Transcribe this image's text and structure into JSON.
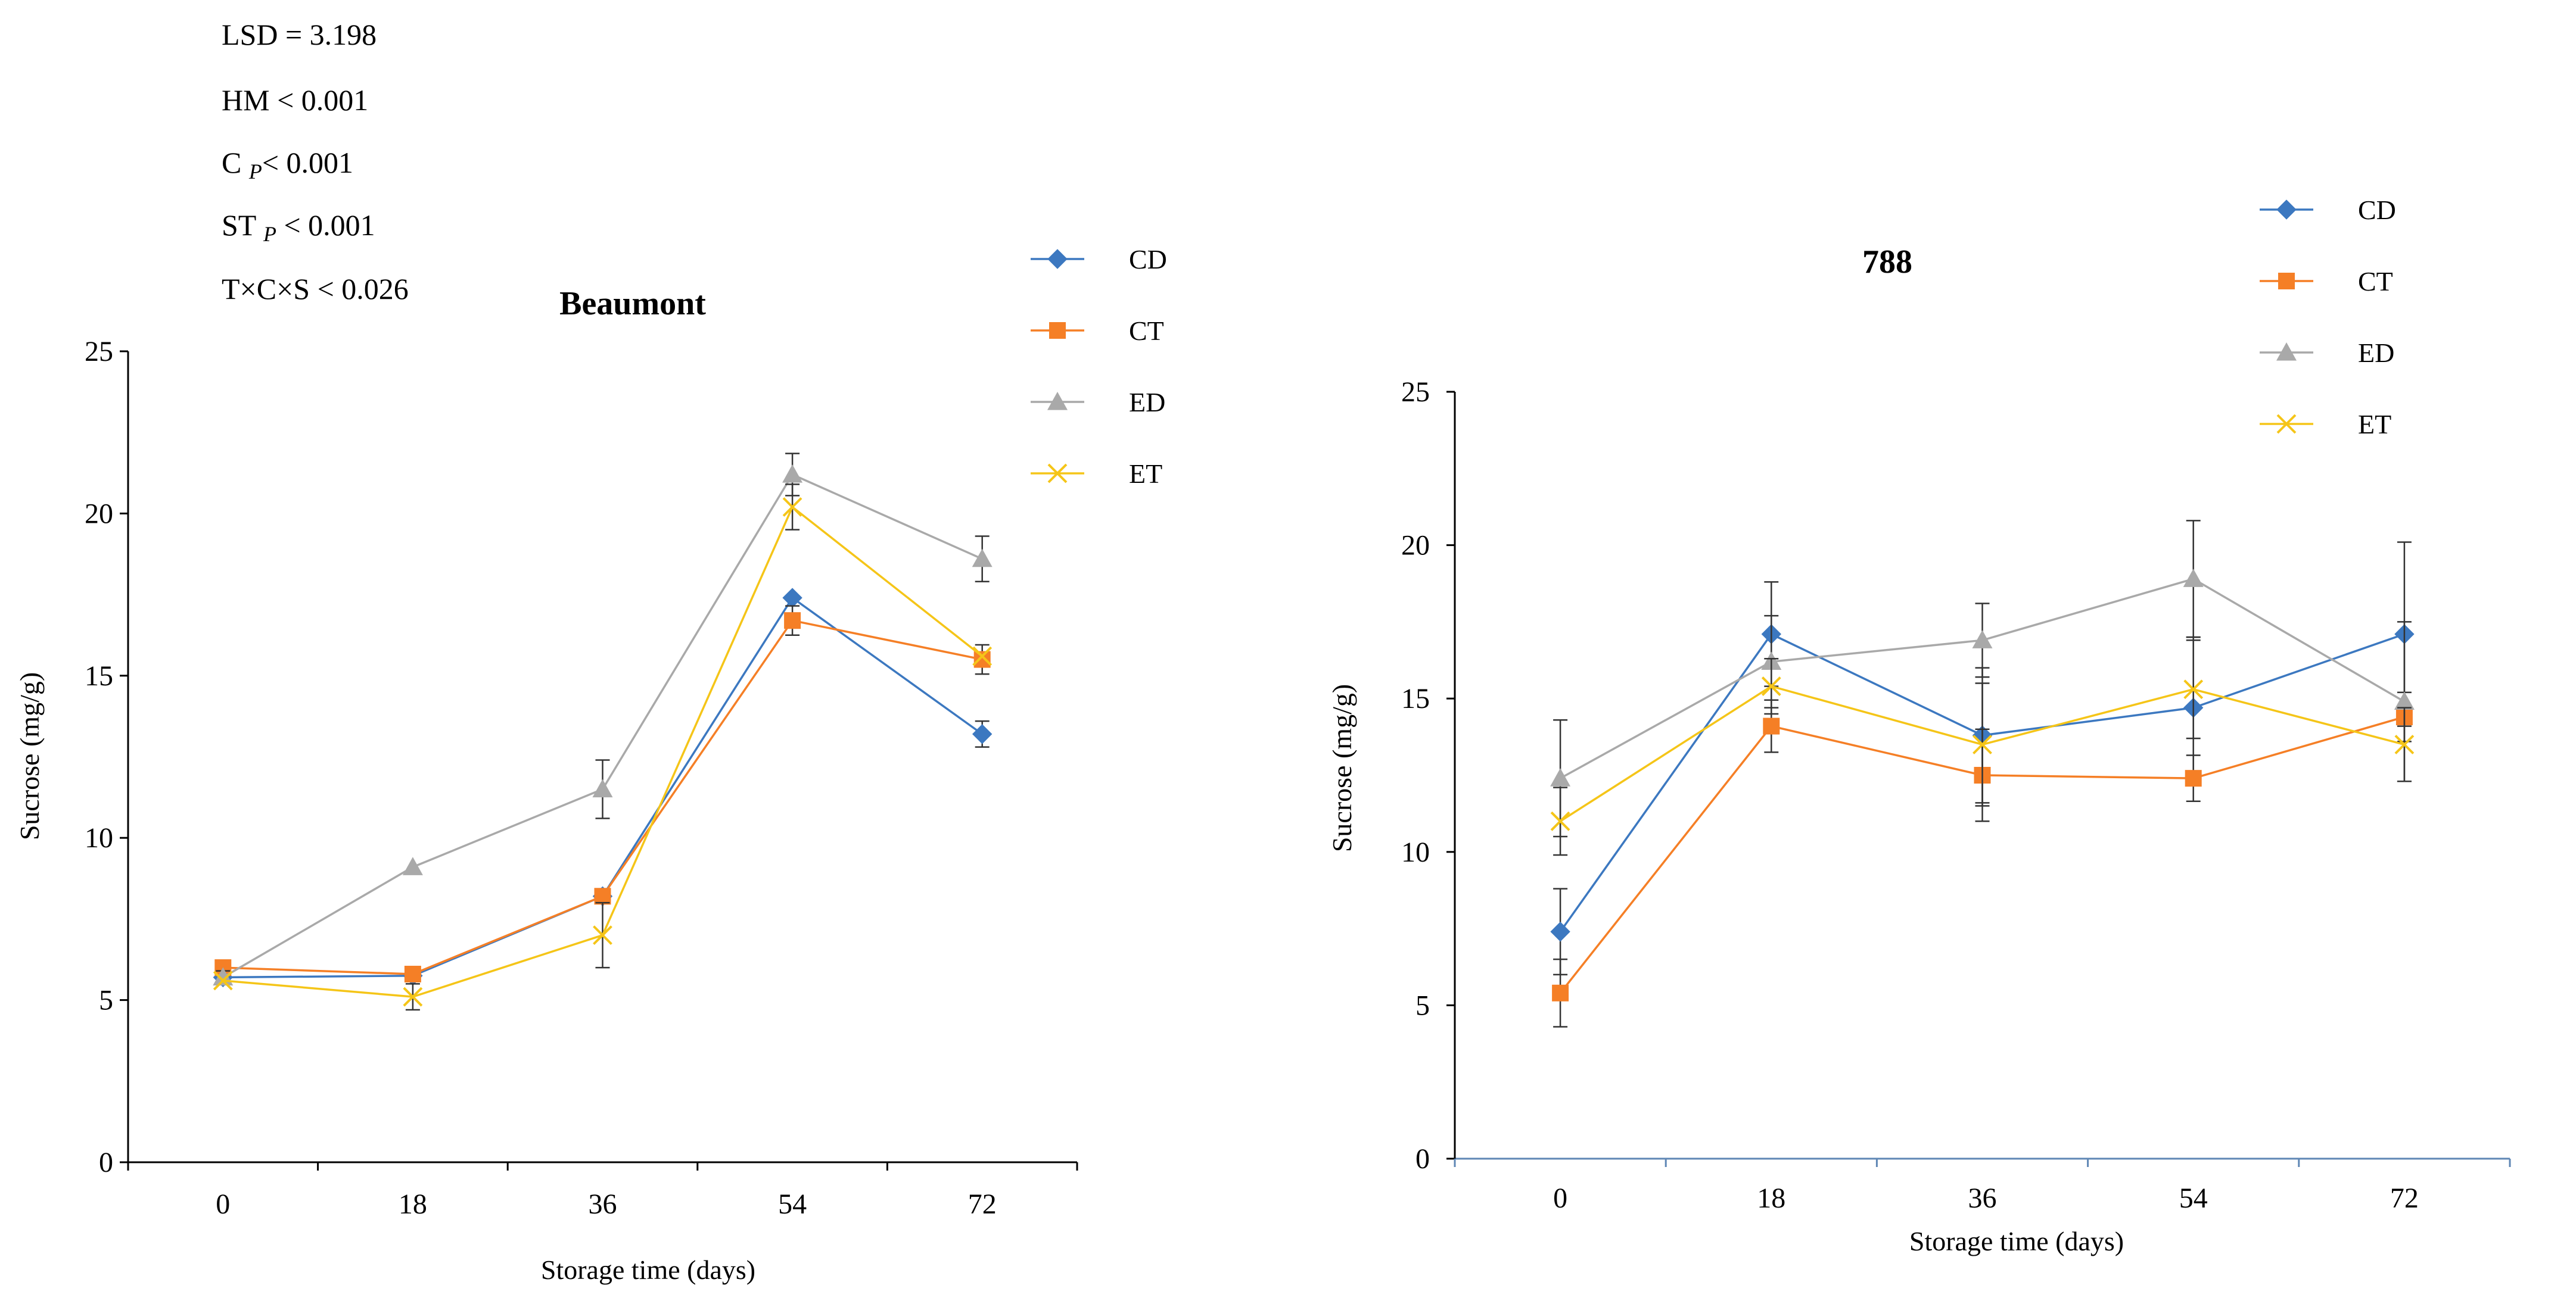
{
  "stats": {
    "lsd_label": "LSD = ",
    "lsd_value": "3.198",
    "hm": "HM < 0.001",
    "c_main": "C ",
    "c_sub": "P",
    "c_rest": "< 0.001",
    "st_main": "ST ",
    "st_sub": "P",
    "st_rest": " < 0.001",
    "interaction": "T×C×S < 0.026"
  },
  "colors": {
    "CD": "#3c78c0",
    "CT": "#f57f26",
    "ED": "#a9a9a9",
    "ET": "#f5c518",
    "axis": "#000000",
    "axis_right": "#5f87b5"
  },
  "chart_data": [
    {
      "type": "line",
      "title": "Beaumont",
      "xlabel": "Storage time  (days)",
      "ylabel": "Sucrose  (mg/g)",
      "ylim": [
        0,
        25
      ],
      "y_ticks": [
        0,
        5,
        10,
        15,
        20,
        25
      ],
      "categories": [
        "0",
        "18",
        "36",
        "54",
        "72"
      ],
      "legend_position": "top-right",
      "series": [
        {
          "name": "CD",
          "marker": "diamond",
          "values": [
            5.7,
            5.75,
            8.2,
            17.4,
            13.2
          ],
          "errors": [
            0,
            0,
            0,
            0,
            0.4
          ]
        },
        {
          "name": "CT",
          "marker": "square",
          "values": [
            6.0,
            5.8,
            8.2,
            16.7,
            15.5
          ],
          "errors": [
            0,
            0,
            0,
            0.45,
            0.45
          ]
        },
        {
          "name": "ED",
          "marker": "triangle",
          "values": [
            5.7,
            9.1,
            11.5,
            21.2,
            18.6
          ],
          "errors": [
            0.2,
            0,
            0.9,
            0.65,
            0.7
          ]
        },
        {
          "name": "ET",
          "marker": "x",
          "values": [
            5.6,
            5.1,
            7.0,
            20.2,
            15.6
          ],
          "errors": [
            0,
            0.4,
            1.0,
            0.7,
            0
          ]
        }
      ]
    },
    {
      "type": "line",
      "title": "788",
      "xlabel": "Storage time  (days)",
      "ylabel": "Sucrose  (mg/g)",
      "ylim": [
        0,
        25
      ],
      "y_ticks": [
        0,
        5,
        10,
        15,
        20,
        25
      ],
      "categories": [
        "0",
        "18",
        "36",
        "54",
        "72"
      ],
      "legend_position": "top-right",
      "series": [
        {
          "name": "CD",
          "marker": "diamond",
          "values": [
            7.4,
            17.1,
            13.8,
            14.7,
            17.1
          ],
          "errors": [
            1.4,
            1.7,
            2.2,
            2.3,
            3.0
          ]
        },
        {
          "name": "CT",
          "marker": "square",
          "values": [
            5.4,
            14.1,
            12.5,
            12.4,
            14.4
          ],
          "errors": [
            1.1,
            0.85,
            1.5,
            0.75,
            0.8
          ]
        },
        {
          "name": "ED",
          "marker": "triangle",
          "values": [
            12.4,
            16.2,
            16.9,
            18.9,
            14.9
          ],
          "errors": [
            1.9,
            1.5,
            1.2,
            1.9,
            2.6
          ]
        },
        {
          "name": "ET",
          "marker": "x",
          "values": [
            11.0,
            15.4,
            13.5,
            15.3,
            13.5
          ],
          "errors": [
            1.1,
            0.9,
            2.0,
            1.6,
            1.2
          ]
        }
      ]
    }
  ]
}
